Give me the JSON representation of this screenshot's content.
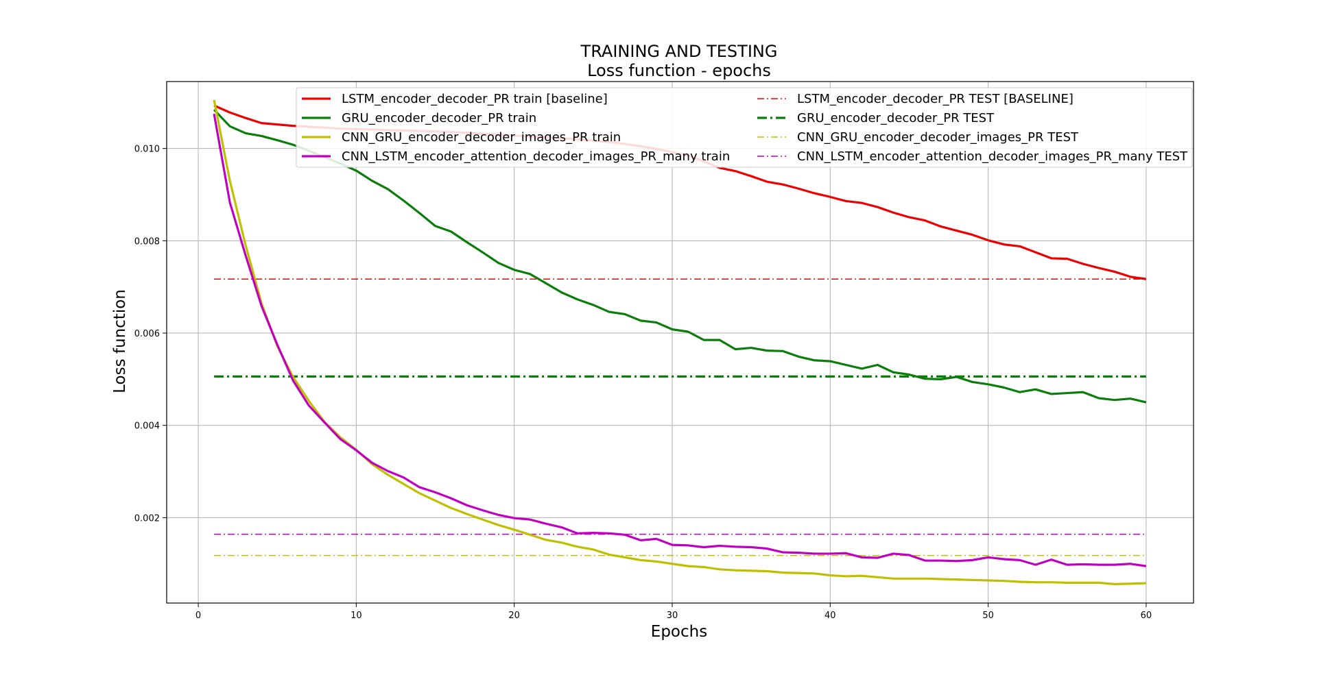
{
  "chart_data": {
    "type": "line",
    "title": "TRAINING AND TESTING",
    "subtitle": "Loss function - epochs",
    "xlabel": "Epochs",
    "ylabel": "Loss function",
    "xlim": [
      -2,
      63
    ],
    "ylim": [
      0.00015,
      0.01145
    ],
    "xticks": [
      0,
      10,
      20,
      30,
      40,
      50,
      60
    ],
    "xtick_labels": [
      "0",
      "10",
      "20",
      "30",
      "40",
      "50",
      "60"
    ],
    "yticks": [
      0.002,
      0.004,
      0.006,
      0.008,
      0.01
    ],
    "ytick_labels": [
      "0.002",
      "0.004",
      "0.006",
      "0.008",
      "0.010"
    ],
    "grid": true,
    "legend_position": "top, two columns",
    "x": [
      1,
      2,
      3,
      4,
      5,
      6,
      7,
      8,
      9,
      10,
      11,
      12,
      13,
      14,
      15,
      16,
      17,
      18,
      19,
      20,
      21,
      22,
      23,
      24,
      25,
      26,
      27,
      28,
      29,
      30,
      31,
      32,
      33,
      34,
      35,
      36,
      37,
      38,
      39,
      40,
      41,
      42,
      43,
      44,
      45,
      46,
      47,
      48,
      49,
      50,
      51,
      52,
      53,
      54,
      55,
      56,
      57,
      58,
      59,
      60
    ],
    "series": [
      {
        "name": "LSTM_encoder_decoder_PR train [baseline]",
        "color": "#ee0000",
        "style": "solid",
        "values": [
          0.01093,
          0.01078,
          0.01066,
          0.01055,
          0.01052,
          0.01049,
          0.01047,
          0.01045,
          0.01043,
          0.01042,
          0.01041,
          0.0104,
          0.01039,
          0.01038,
          0.01037,
          0.01036,
          0.01034,
          0.01032,
          0.0103,
          0.01028,
          0.01026,
          0.01024,
          0.01022,
          0.0102,
          0.01017,
          0.01014,
          0.0101,
          0.01005,
          0.00999,
          0.00992,
          0.00985,
          0.00972,
          0.00958,
          0.00951,
          0.0094,
          0.00928,
          0.00922,
          0.00913,
          0.00903,
          0.00895,
          0.00886,
          0.00882,
          0.00873,
          0.00861,
          0.00851,
          0.00844,
          0.00831,
          0.00822,
          0.00813,
          0.00801,
          0.00792,
          0.00788,
          0.00775,
          0.00762,
          0.00761,
          0.0075,
          0.00741,
          0.00733,
          0.00722,
          0.00717
        ]
      },
      {
        "name": "GRU_encoder_decoder_PR train",
        "color": "#0a7d0a",
        "style": "solid",
        "values": [
          0.01084,
          0.01048,
          0.01033,
          0.01027,
          0.01018,
          0.01008,
          0.00995,
          0.00981,
          0.00967,
          0.00952,
          0.0093,
          0.00912,
          0.00887,
          0.0086,
          0.00832,
          0.0082,
          0.00797,
          0.00775,
          0.00752,
          0.00737,
          0.00728,
          0.00708,
          0.00688,
          0.00673,
          0.00661,
          0.00646,
          0.00641,
          0.00627,
          0.00623,
          0.00608,
          0.00603,
          0.00585,
          0.00585,
          0.00565,
          0.00568,
          0.00562,
          0.00561,
          0.00549,
          0.00541,
          0.00539,
          0.00531,
          0.00523,
          0.00531,
          0.00515,
          0.0051,
          0.00501,
          0.005,
          0.00505,
          0.00494,
          0.00489,
          0.00482,
          0.00472,
          0.00478,
          0.00468,
          0.0047,
          0.00472,
          0.00459,
          0.00455,
          0.00458,
          0.0045
        ]
      },
      {
        "name": "CNN_GRU_encoder_decoder_images_PR train",
        "color": "#bfbf00",
        "style": "solid",
        "values": [
          0.01105,
          0.0093,
          0.0079,
          0.00665,
          0.00572,
          0.00505,
          0.00453,
          0.00407,
          0.00374,
          0.00347,
          0.00316,
          0.00293,
          0.00273,
          0.00253,
          0.00237,
          0.00221,
          0.00208,
          0.00196,
          0.00184,
          0.00174,
          0.00163,
          0.00152,
          0.00146,
          0.00137,
          0.00131,
          0.0012,
          0.00114,
          0.00108,
          0.00105,
          0.001,
          0.00095,
          0.00093,
          0.00088,
          0.00086,
          0.00085,
          0.00084,
          0.00081,
          0.0008,
          0.00079,
          0.00075,
          0.00073,
          0.00074,
          0.00071,
          0.00068,
          0.00068,
          0.00068,
          0.00067,
          0.00066,
          0.00065,
          0.00064,
          0.00063,
          0.00061,
          0.0006,
          0.0006,
          0.00059,
          0.00059,
          0.00059,
          0.00056,
          0.00057,
          0.00058
        ]
      },
      {
        "name": "CNN_LSTM_encoder_attention_decoder_images_PR_many train",
        "color": "#c000c0",
        "style": "solid",
        "values": [
          0.01075,
          0.00883,
          0.00768,
          0.00659,
          0.00575,
          0.00497,
          0.00443,
          0.00406,
          0.0037,
          0.00346,
          0.00319,
          0.00301,
          0.00287,
          0.00266,
          0.00255,
          0.00242,
          0.00227,
          0.00216,
          0.00206,
          0.00199,
          0.00196,
          0.00187,
          0.00179,
          0.00166,
          0.00167,
          0.00166,
          0.00163,
          0.00151,
          0.00154,
          0.00141,
          0.0014,
          0.00136,
          0.00139,
          0.00137,
          0.00136,
          0.00133,
          0.00125,
          0.00124,
          0.00122,
          0.00122,
          0.00123,
          0.00114,
          0.00113,
          0.00122,
          0.00119,
          0.00107,
          0.00107,
          0.00106,
          0.00108,
          0.00114,
          0.0011,
          0.00108,
          0.00098,
          0.00109,
          0.00098,
          0.00099,
          0.00098,
          0.00098,
          0.001,
          0.00095
        ]
      },
      {
        "name": "LSTM_encoder_decoder_PR TEST [BASELINE]",
        "color": "#ee0000",
        "style": "dashdot",
        "value": 0.00717
      },
      {
        "name": "GRU_encoder_decoder_PR TEST",
        "color": "#0a7d0a",
        "style": "dashdot-thick",
        "value": 0.00506
      },
      {
        "name": "CNN_GRU_encoder_decoder_images_PR TEST",
        "color": "#bfbf00",
        "style": "dashdot",
        "value": 0.00118
      },
      {
        "name": "CNN_LSTM_encoder_attention_decoder_images_PR_many TEST",
        "color": "#c000c0",
        "style": "dashdot",
        "value": 0.00164
      }
    ]
  }
}
